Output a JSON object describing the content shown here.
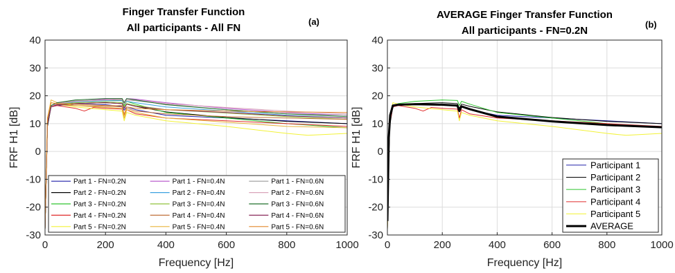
{
  "chart_data": [
    {
      "type": "line",
      "title": "Finger Transfer Function",
      "subtitle": "All participants - All FN",
      "panel_label": "(a)",
      "xlabel": "Frequency [Hz]",
      "ylabel": "FRF H1 [dB]",
      "xlim": [
        0,
        1000
      ],
      "ylim": [
        -30,
        40
      ],
      "xticks": [
        0,
        200,
        400,
        600,
        800,
        1000
      ],
      "yticks": [
        -30,
        -20,
        -10,
        0,
        10,
        20,
        30,
        40
      ],
      "xtick_labels": [
        "0",
        "200",
        "400",
        "600",
        "800",
        "1000"
      ],
      "ytick_labels": [
        "-30",
        "-20",
        "-10",
        "0",
        "10",
        "20",
        "30",
        "40"
      ],
      "grid": true,
      "legend_position": "bottom-inside",
      "legend_columns": 3,
      "series": [
        {
          "name": "Part 1 - FN=0.2N",
          "color": "#1f1fa8",
          "x": [
            0,
            8,
            20,
            40,
            100,
            200,
            255,
            262,
            270,
            300,
            400,
            600,
            800,
            1000
          ],
          "y": [
            -28,
            10,
            16,
            16.5,
            17,
            16.8,
            16.2,
            14.8,
            16,
            15,
            13,
            12,
            11,
            10
          ]
        },
        {
          "name": "Part 2 - FN=0.2N",
          "color": "#000000",
          "x": [
            0,
            8,
            20,
            40,
            100,
            200,
            255,
            262,
            270,
            300,
            400,
            600,
            800,
            1000
          ],
          "y": [
            -28,
            9,
            16,
            16.8,
            17.2,
            17.5,
            17.2,
            15.5,
            17,
            16.2,
            14.2,
            12.2,
            10.8,
            10
          ]
        },
        {
          "name": "Part 3 - FN=0.2N",
          "color": "#2ec42e",
          "x": [
            0,
            8,
            20,
            40,
            100,
            200,
            255,
            262,
            270,
            300,
            400,
            600,
            800,
            1000
          ],
          "y": [
            -28,
            11,
            16.5,
            17.2,
            18,
            18.5,
            18.3,
            16.5,
            18,
            17,
            14,
            12,
            10,
            8.5
          ]
        },
        {
          "name": "Part 4 - FN=0.2N",
          "color": "#e02a2a",
          "x": [
            0,
            8,
            20,
            40,
            100,
            130,
            160,
            200,
            255,
            262,
            270,
            300,
            400,
            600,
            800,
            1000
          ],
          "y": [
            -28,
            10,
            16,
            16.5,
            15.5,
            14.5,
            15.8,
            15.5,
            15.2,
            12,
            15,
            13.5,
            12,
            11,
            10,
            9
          ]
        },
        {
          "name": "Part 5 - FN=0.2N",
          "color": "#f2f235",
          "x": [
            0,
            8,
            20,
            40,
            100,
            200,
            255,
            262,
            270,
            300,
            400,
            600,
            800,
            870,
            1000
          ],
          "y": [
            -28,
            12,
            17.5,
            17,
            16,
            15,
            14.5,
            11,
            14,
            13,
            11,
            9,
            6.5,
            5.8,
            6.5
          ]
        },
        {
          "name": "Part 1 - FN=0.4N",
          "color": "#b44fc9",
          "x": [
            0,
            8,
            20,
            40,
            100,
            200,
            255,
            262,
            270,
            300,
            400,
            600,
            800,
            1000
          ],
          "y": [
            -28,
            10,
            16.5,
            17.2,
            18,
            18.8,
            19,
            17.5,
            19,
            18.8,
            17.5,
            15.5,
            14,
            13
          ]
        },
        {
          "name": "Part 2 - FN=0.4N",
          "color": "#3aa1e0",
          "x": [
            0,
            8,
            20,
            40,
            100,
            200,
            255,
            262,
            270,
            300,
            400,
            600,
            800,
            1000
          ],
          "y": [
            -28,
            10,
            16,
            17,
            17.8,
            18.2,
            18.2,
            17,
            18,
            17.5,
            16,
            14.5,
            13,
            12
          ]
        },
        {
          "name": "Part 3 - FN=0.4N",
          "color": "#8fc23a",
          "x": [
            0,
            8,
            20,
            40,
            100,
            200,
            255,
            262,
            270,
            300,
            400,
            600,
            800,
            1000
          ],
          "y": [
            -28,
            10,
            16.2,
            17,
            17.5,
            17.8,
            17.5,
            16,
            17.2,
            16.5,
            15,
            13.8,
            12.5,
            11.5
          ]
        },
        {
          "name": "Part 4 - FN=0.4N",
          "color": "#c0713a",
          "x": [
            0,
            8,
            20,
            40,
            100,
            200,
            255,
            262,
            270,
            300,
            400,
            600,
            800,
            1000
          ],
          "y": [
            -28,
            11,
            16.5,
            16.8,
            16.5,
            16.2,
            16,
            13.5,
            15.5,
            14.5,
            13.5,
            12.5,
            12,
            11.5
          ]
        },
        {
          "name": "Part 5 - FN=0.4N",
          "color": "#e8b43a",
          "x": [
            0,
            8,
            20,
            40,
            100,
            200,
            255,
            262,
            270,
            300,
            400,
            600,
            800,
            1000
          ],
          "y": [
            -28,
            12,
            18.5,
            17.5,
            16.5,
            15.8,
            15.5,
            12,
            15,
            14,
            12,
            10.5,
            9,
            8.5
          ]
        },
        {
          "name": "Part 1 - FN=0.6N",
          "color": "#9a9a9a",
          "x": [
            0,
            8,
            20,
            40,
            100,
            200,
            255,
            262,
            270,
            300,
            400,
            600,
            800,
            1000
          ],
          "y": [
            -28,
            10,
            16.5,
            17.5,
            18.2,
            18.5,
            18.5,
            17,
            18.5,
            18.2,
            17,
            15,
            13.5,
            13
          ]
        },
        {
          "name": "Part 2 - FN=0.6N",
          "color": "#d9a3b9",
          "x": [
            0,
            8,
            20,
            40,
            100,
            200,
            255,
            262,
            270,
            300,
            400,
            600,
            800,
            1000
          ],
          "y": [
            -28,
            10,
            16.2,
            17.2,
            18,
            18.5,
            18.8,
            17,
            18.5,
            18.5,
            17.2,
            15.8,
            14.5,
            13.5
          ]
        },
        {
          "name": "Part 3 - FN=0.6N",
          "color": "#1f6f2a",
          "x": [
            0,
            8,
            20,
            40,
            100,
            200,
            255,
            262,
            270,
            300,
            400,
            600,
            800,
            1000
          ],
          "y": [
            -28,
            10,
            16.5,
            17.5,
            18.5,
            19,
            19,
            17.5,
            19,
            18.5,
            16.8,
            15,
            13.5,
            12.5
          ]
        },
        {
          "name": "Part 4 - FN=0.6N",
          "color": "#8a2a5a",
          "x": [
            0,
            8,
            20,
            40,
            100,
            200,
            255,
            262,
            270,
            300,
            400,
            600,
            800,
            1000
          ],
          "y": [
            -28,
            10,
            16,
            16.8,
            17.2,
            17.5,
            17.2,
            15.5,
            17,
            16.2,
            15,
            14,
            12.8,
            12
          ]
        },
        {
          "name": "Part 5 - FN=0.6N",
          "color": "#e2872a",
          "x": [
            0,
            8,
            20,
            40,
            100,
            200,
            255,
            262,
            270,
            300,
            400,
            600,
            800,
            1000
          ],
          "y": [
            -28,
            12,
            17.5,
            17.2,
            17,
            16.5,
            16.5,
            13,
            16,
            15.5,
            15,
            14.5,
            14.2,
            14
          ]
        }
      ]
    },
    {
      "type": "line",
      "title": "AVERAGE Finger Transfer Function",
      "subtitle": "All participants - FN=0.2N",
      "panel_label": "(b)",
      "xlabel": "Frequency [Hz]",
      "ylabel": "FRF H1 [dB]",
      "xlim": [
        0,
        1000
      ],
      "ylim": [
        -30,
        40
      ],
      "xticks": [
        0,
        200,
        400,
        600,
        800,
        1000
      ],
      "yticks": [
        -30,
        -20,
        -10,
        0,
        10,
        20,
        30,
        40
      ],
      "xtick_labels": [
        "0",
        "200",
        "400",
        "600",
        "800",
        "1000"
      ],
      "ytick_labels": [
        "-30",
        "-20",
        "-10",
        "0",
        "10",
        "20",
        "30",
        "40"
      ],
      "grid": true,
      "legend_position": "bottom-right",
      "legend_columns": 1,
      "series": [
        {
          "name": "Participant 1",
          "color": "#1f1fa8",
          "width": 1,
          "x": [
            0,
            8,
            20,
            40,
            100,
            200,
            255,
            262,
            270,
            300,
            400,
            600,
            800,
            1000
          ],
          "y": [
            -28,
            10,
            16,
            16.5,
            17,
            16.8,
            16.2,
            14.8,
            16,
            15,
            13,
            12,
            11,
            10
          ]
        },
        {
          "name": "Participant 2",
          "color": "#000000",
          "width": 1,
          "x": [
            0,
            8,
            20,
            40,
            100,
            200,
            255,
            262,
            270,
            300,
            400,
            600,
            800,
            1000
          ],
          "y": [
            -28,
            9,
            16,
            16.8,
            17.2,
            17.5,
            17.2,
            15.5,
            17,
            16.2,
            14.2,
            12.2,
            10.8,
            10
          ]
        },
        {
          "name": "Participant 3",
          "color": "#2ec42e",
          "width": 1,
          "x": [
            0,
            8,
            20,
            40,
            100,
            200,
            255,
            262,
            270,
            300,
            400,
            600,
            800,
            1000
          ],
          "y": [
            -28,
            11,
            16.5,
            17.2,
            18,
            18.5,
            18.3,
            16.5,
            18,
            17,
            14,
            12,
            10,
            8.5
          ]
        },
        {
          "name": "Participant 4",
          "color": "#e02a2a",
          "width": 1,
          "x": [
            0,
            8,
            20,
            40,
            100,
            130,
            160,
            200,
            255,
            262,
            270,
            300,
            400,
            600,
            800,
            1000
          ],
          "y": [
            -28,
            10,
            16,
            16.5,
            15.5,
            14.5,
            15.8,
            15.5,
            15.2,
            12,
            15,
            13.5,
            12,
            11,
            10,
            9
          ]
        },
        {
          "name": "Participant 5",
          "color": "#f2f235",
          "width": 1,
          "x": [
            0,
            8,
            20,
            40,
            100,
            200,
            255,
            262,
            270,
            300,
            400,
            600,
            800,
            870,
            1000
          ],
          "y": [
            -28,
            12,
            17.5,
            17,
            16,
            15,
            14.5,
            11,
            14,
            13,
            11,
            9,
            6.5,
            5.8,
            6.5
          ]
        },
        {
          "name": "AVERAGE",
          "color": "#000000",
          "width": 3,
          "x": [
            0,
            5,
            10,
            20,
            40,
            100,
            200,
            255,
            262,
            270,
            300,
            400,
            600,
            800,
            1000
          ],
          "y": [
            -25,
            5,
            13,
            16.5,
            16.8,
            17,
            16.8,
            16.5,
            14.5,
            16.2,
            15.2,
            12.5,
            10.8,
            9.5,
            8.7
          ]
        }
      ]
    }
  ]
}
